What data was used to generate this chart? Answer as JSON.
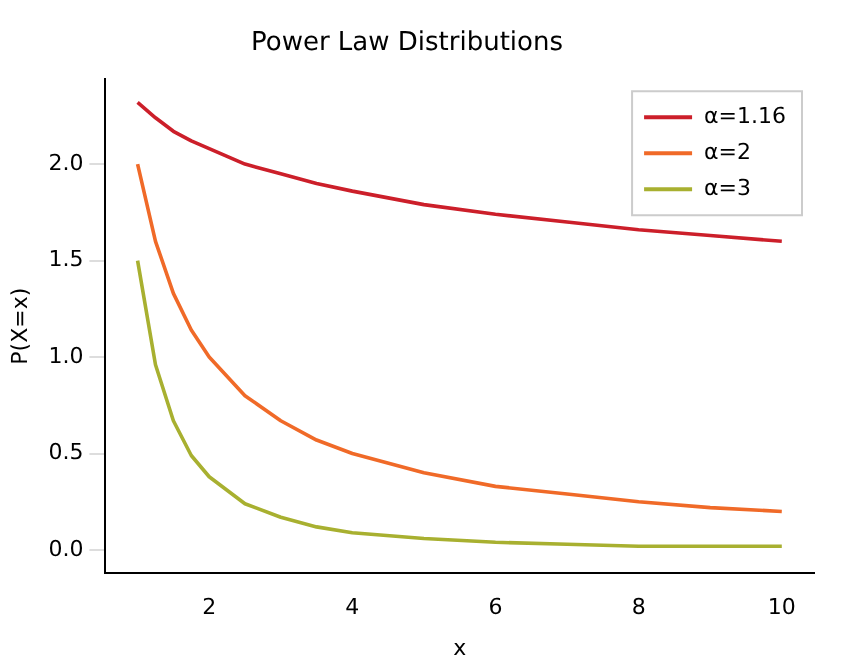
{
  "chart_data": {
    "type": "line",
    "title": "Power Law Distributions",
    "xlabel": "x",
    "ylabel": "P(X=x)",
    "x": [
      1,
      1.25,
      1.5,
      1.75,
      2,
      2.5,
      3,
      3.5,
      4,
      5,
      6,
      7,
      8,
      9,
      10
    ],
    "series": [
      {
        "name": "α=1.16",
        "color": "#cc1f2a",
        "values": [
          2.32,
          2.24,
          2.17,
          2.12,
          2.08,
          2.0,
          1.95,
          1.9,
          1.86,
          1.79,
          1.74,
          1.7,
          1.66,
          1.63,
          1.6
        ]
      },
      {
        "name": "α=2",
        "color": "#f06a28",
        "values": [
          2.0,
          1.6,
          1.33,
          1.14,
          1.0,
          0.8,
          0.67,
          0.57,
          0.5,
          0.4,
          0.33,
          0.29,
          0.25,
          0.22,
          0.2
        ]
      },
      {
        "name": "α=3",
        "color": "#a8b030",
        "values": [
          1.5,
          0.96,
          0.67,
          0.49,
          0.38,
          0.24,
          0.17,
          0.12,
          0.09,
          0.06,
          0.04,
          0.03,
          0.02,
          0.02,
          0.02
        ]
      }
    ],
    "xlim": [
      0.55,
      10.45
    ],
    "xticks": [
      2,
      4,
      6,
      8,
      10
    ],
    "ylim": [
      -0.12,
      2.44
    ],
    "yticks": [
      {
        "value": 0,
        "label": "0.0"
      },
      {
        "value": 0.5,
        "label": "0.5"
      },
      {
        "value": 1,
        "label": "1.0"
      },
      {
        "value": 1.5,
        "label": "1.5"
      },
      {
        "value": 2,
        "label": "2.0"
      }
    ],
    "legend": "top right",
    "grid": false,
    "marker": "none",
    "line_style": "solid"
  }
}
